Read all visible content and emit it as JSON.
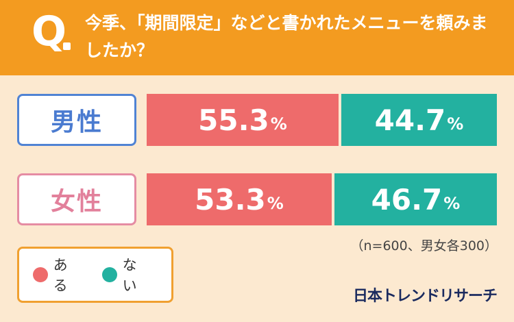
{
  "header": {
    "q_letter": "Q",
    "question": "今季、「期間限定」などと書かれたメニューを頼みましたか？"
  },
  "colors": {
    "header_bg": "#f39b20",
    "yes": "#ee6b6b",
    "no": "#23b1a0",
    "male": "#4a7bd0",
    "female": "#e2809b"
  },
  "chart_data": {
    "type": "bar",
    "stacked": true,
    "orientation": "horizontal",
    "unit": "%",
    "categories": [
      "男性",
      "女性"
    ],
    "series": [
      {
        "name": "ある",
        "values": [
          55.3,
          53.3
        ]
      },
      {
        "name": "ない",
        "values": [
          44.7,
          46.7
        ]
      }
    ]
  },
  "note": "（n=600、男女各300）",
  "brand": "日本トレンドリサーチ"
}
